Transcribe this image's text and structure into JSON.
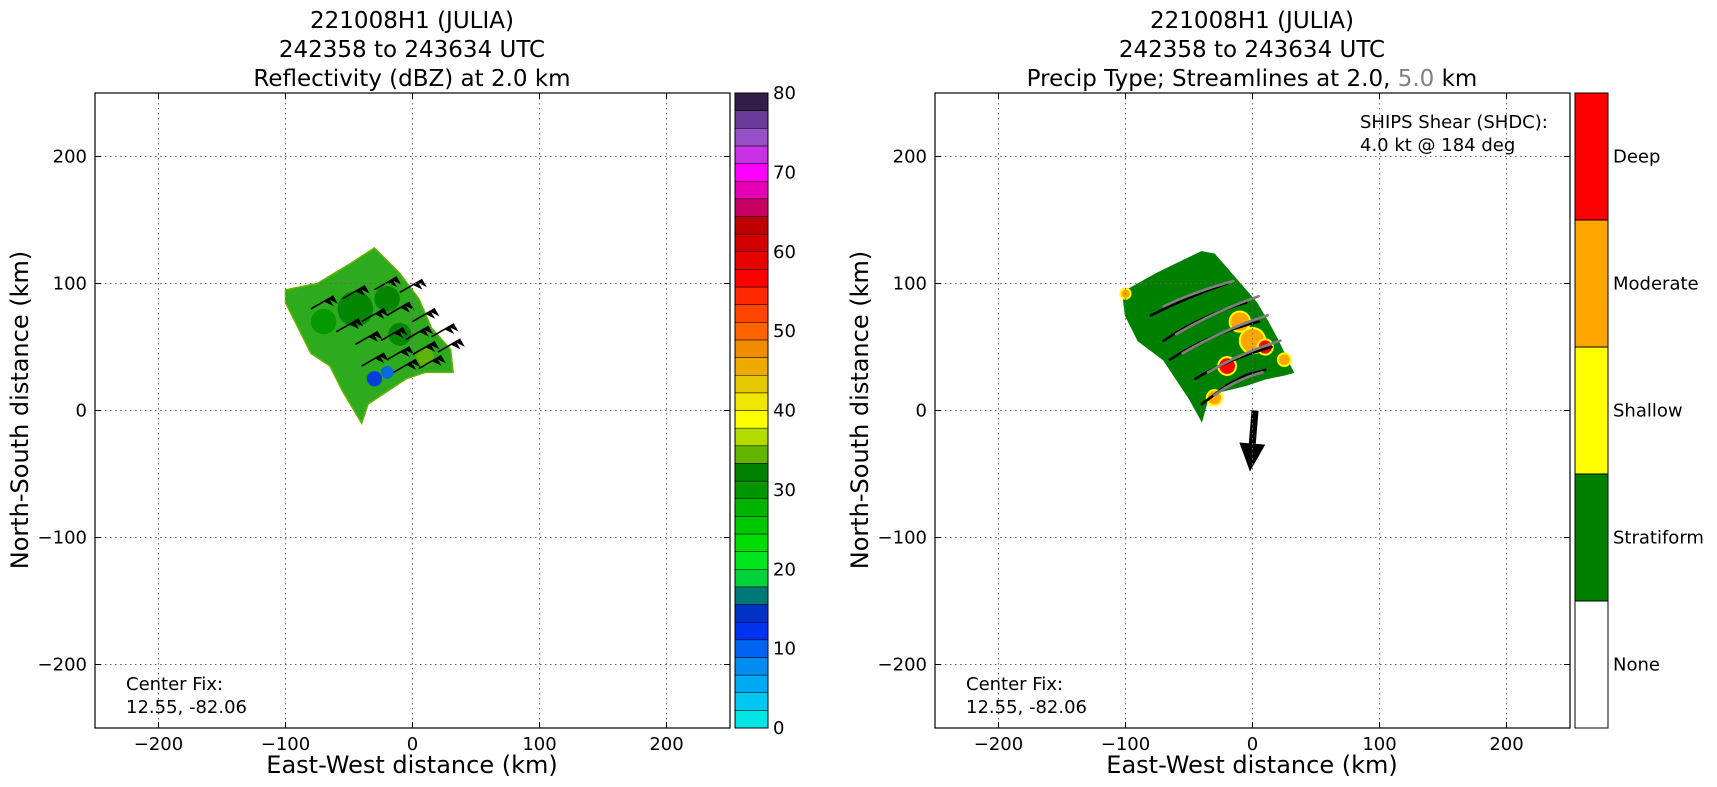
{
  "chart_data": [
    {
      "type": "heatmap",
      "title_lines": [
        "221008H1 (JULIA)",
        "242358 to 243634 UTC",
        "Reflectivity (dBZ) at 2.0 km"
      ],
      "xlabel": "East-West distance (km)",
      "ylabel": "North-South distance (km)",
      "xlim": [
        -250,
        250
      ],
      "ylim": [
        -250,
        250
      ],
      "xticks": [
        -200,
        -100,
        0,
        100,
        200
      ],
      "yticks": [
        -200,
        -100,
        0,
        100,
        200
      ],
      "xtick_labels": [
        "−200",
        "−100",
        "0",
        "100",
        "200"
      ],
      "ytick_labels": [
        "−200",
        "−100",
        "0",
        "100",
        "200"
      ],
      "grid": true,
      "annotation_lines": [
        "Center Fix:",
        "12.55, -82.06"
      ],
      "colorbar": {
        "min": 0,
        "max": 80,
        "step": 2.5,
        "tick_values": [
          0,
          10,
          20,
          30,
          40,
          50,
          60,
          70,
          80
        ],
        "tick_labels": [
          "0",
          "10",
          "20",
          "30",
          "40",
          "50",
          "60",
          "70",
          "80"
        ],
        "colors": [
          "#00e5e5",
          "#00c8f0",
          "#00aaf2",
          "#008cf0",
          "#0064f0",
          "#0032f0",
          "#0032c8",
          "#007878",
          "#00d23c",
          "#00e61e",
          "#00dc00",
          "#00c800",
          "#00b400",
          "#009600",
          "#008200",
          "#64b400",
          "#b4dc00",
          "#ffff00",
          "#f0e600",
          "#e6c800",
          "#eeaa00",
          "#f08c00",
          "#ff6400",
          "#ff4600",
          "#ff2800",
          "#ff0000",
          "#e60000",
          "#d20000",
          "#be0000",
          "#c80064",
          "#e600b4",
          "#ff00ff",
          "#c832e6",
          "#9650c8",
          "#6a3c9a",
          "#321e46"
        ]
      },
      "echo_region_vertices": [
        [
          -100,
          95
        ],
        [
          -75,
          100
        ],
        [
          -50,
          115
        ],
        [
          -30,
          128
        ],
        [
          -10,
          108
        ],
        [
          5,
          88
        ],
        [
          15,
          65
        ],
        [
          30,
          48
        ],
        [
          32,
          30
        ],
        [
          10,
          30
        ],
        [
          -5,
          25
        ],
        [
          -20,
          15
        ],
        [
          -35,
          5
        ],
        [
          -40,
          -10
        ],
        [
          -55,
          15
        ],
        [
          -65,
          35
        ],
        [
          -80,
          45
        ],
        [
          -90,
          65
        ],
        [
          -100,
          85
        ]
      ],
      "cells": [
        {
          "x": -45,
          "y": 80,
          "r": 14,
          "dbz": 36
        },
        {
          "x": -20,
          "y": 88,
          "r": 10,
          "dbz": 35
        },
        {
          "x": -70,
          "y": 70,
          "r": 10,
          "dbz": 34
        },
        {
          "x": -10,
          "y": 60,
          "r": 9,
          "dbz": 36
        },
        {
          "x": 10,
          "y": 42,
          "r": 7,
          "dbz": 38
        },
        {
          "x": -30,
          "y": 25,
          "r": 6,
          "dbz": 13
        },
        {
          "x": -20,
          "y": 30,
          "r": 5,
          "dbz": 11
        }
      ],
      "wind_barbs": [
        {
          "x": -80,
          "y": 80
        },
        {
          "x": -55,
          "y": 88
        },
        {
          "x": -30,
          "y": 95
        },
        {
          "x": -10,
          "y": 93
        },
        {
          "x": -60,
          "y": 62
        },
        {
          "x": -40,
          "y": 70
        },
        {
          "x": -20,
          "y": 75
        },
        {
          "x": 0,
          "y": 70
        },
        {
          "x": -45,
          "y": 52
        },
        {
          "x": -25,
          "y": 55
        },
        {
          "x": -5,
          "y": 56
        },
        {
          "x": 15,
          "y": 58
        },
        {
          "x": -40,
          "y": 35
        },
        {
          "x": -20,
          "y": 40
        },
        {
          "x": 0,
          "y": 44
        },
        {
          "x": 20,
          "y": 46
        },
        {
          "x": -15,
          "y": 30
        },
        {
          "x": 5,
          "y": 33
        }
      ]
    },
    {
      "type": "heatmap",
      "title_lines": [
        "221008H1 (JULIA)",
        "242358 to 243634 UTC"
      ],
      "title_line3_parts": [
        "Precip Type; Streamlines at 2.0, ",
        "5.0",
        " km"
      ],
      "title_line3_colors": [
        "#000000",
        "#808080",
        "#000000"
      ],
      "xlabel": "East-West distance (km)",
      "ylabel": "North-South distance (km)",
      "xlim": [
        -250,
        250
      ],
      "ylim": [
        -250,
        250
      ],
      "xticks": [
        -200,
        -100,
        0,
        100,
        200
      ],
      "yticks": [
        -200,
        -100,
        0,
        100,
        200
      ],
      "xtick_labels": [
        "−200",
        "−100",
        "0",
        "100",
        "200"
      ],
      "ytick_labels": [
        "−200",
        "−100",
        "0",
        "100",
        "200"
      ],
      "grid": true,
      "annotation_lines": [
        "Center Fix:",
        "12.55, -82.06"
      ],
      "shear_lines": [
        "SHIPS Shear (SHDC):",
        "4.0 kt @ 184 deg"
      ],
      "shear_arrow": {
        "x0": 2,
        "y0": 0,
        "x1": -2,
        "y1": -48
      },
      "colorbar": {
        "categories": [
          "None",
          "Stratiform",
          "Shallow",
          "Moderate",
          "Deep"
        ],
        "colors": [
          "#ffffff",
          "#008000",
          "#ffff00",
          "#ffa500",
          "#ff0000"
        ]
      },
      "echo_region_vertices": [
        [
          -102,
          93
        ],
        [
          -75,
          108
        ],
        [
          -40,
          125
        ],
        [
          -30,
          123
        ],
        [
          -10,
          100
        ],
        [
          3,
          85
        ],
        [
          12,
          70
        ],
        [
          20,
          55
        ],
        [
          32,
          30
        ],
        [
          25,
          28
        ],
        [
          10,
          25
        ],
        [
          -5,
          20
        ],
        [
          -25,
          15
        ],
        [
          -35,
          10
        ],
        [
          -40,
          -8
        ],
        [
          -50,
          10
        ],
        [
          -70,
          40
        ],
        [
          -90,
          55
        ],
        [
          -100,
          75
        ]
      ],
      "cells": [
        {
          "x": -10,
          "y": 70,
          "r": 8,
          "cls": "Moderate"
        },
        {
          "x": 0,
          "y": 55,
          "r": 10,
          "cls": "Moderate"
        },
        {
          "x": 10,
          "y": 50,
          "r": 6,
          "cls": "Deep"
        },
        {
          "x": -20,
          "y": 35,
          "r": 7,
          "cls": "Deep"
        },
        {
          "x": -30,
          "y": 10,
          "r": 6,
          "cls": "Moderate"
        },
        {
          "x": 25,
          "y": 40,
          "r": 5,
          "cls": "Moderate"
        },
        {
          "x": -100,
          "y": 92,
          "r": 4,
          "cls": "Moderate"
        }
      ],
      "streamlines_2km": [
        [
          [
            -80,
            75
          ],
          [
            -50,
            90
          ],
          [
            -20,
            100
          ]
        ],
        [
          [
            -70,
            55
          ],
          [
            -40,
            75
          ],
          [
            -5,
            85
          ]
        ],
        [
          [
            -65,
            40
          ],
          [
            -35,
            60
          ],
          [
            5,
            70
          ]
        ],
        [
          [
            -45,
            25
          ],
          [
            -20,
            40
          ],
          [
            15,
            50
          ]
        ],
        [
          [
            -40,
            5
          ],
          [
            -20,
            20
          ],
          [
            -5,
            28
          ],
          [
            10,
            32
          ]
        ]
      ],
      "streamlines_5km": [
        [
          [
            -70,
            82
          ],
          [
            -45,
            94
          ],
          [
            -15,
            102
          ]
        ],
        [
          [
            -60,
            60
          ],
          [
            -30,
            78
          ],
          [
            5,
            90
          ]
        ],
        [
          [
            -55,
            45
          ],
          [
            -25,
            63
          ],
          [
            12,
            75
          ]
        ],
        [
          [
            -35,
            30
          ],
          [
            -10,
            45
          ],
          [
            22,
            55
          ]
        ],
        [
          [
            -30,
            12
          ],
          [
            -12,
            25
          ],
          [
            8,
            30
          ]
        ]
      ]
    }
  ]
}
